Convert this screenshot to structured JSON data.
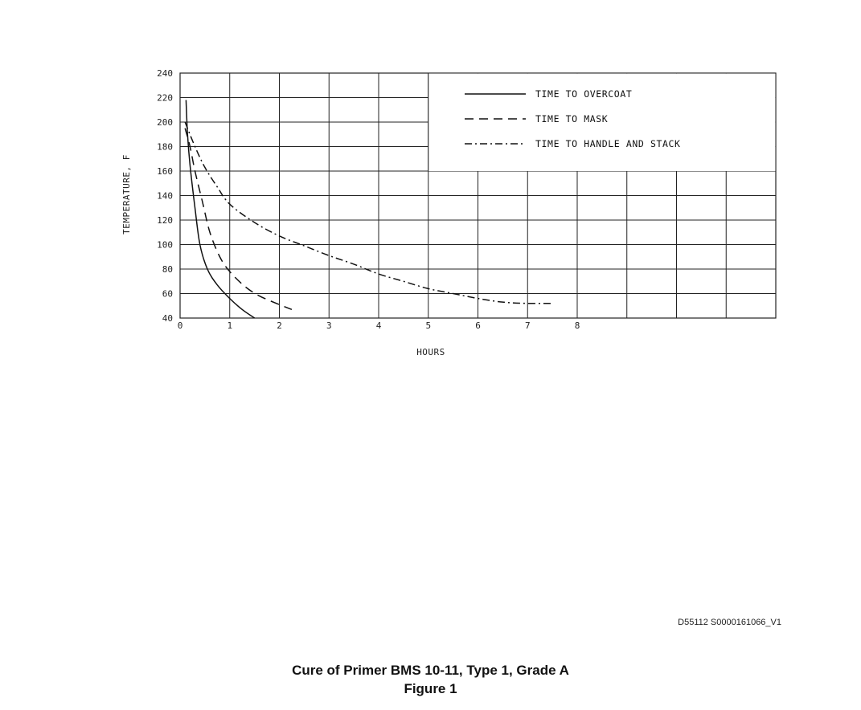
{
  "chart_data": {
    "type": "line",
    "xlabel": "HOURS",
    "ylabel": "TEMPERATURE, F",
    "xlim": [
      0,
      12
    ],
    "ylim": [
      40,
      240
    ],
    "x_ticks": [
      "0",
      "1",
      "2",
      "3",
      "4",
      "5",
      "6",
      "7",
      "8"
    ],
    "y_ticks": [
      "40",
      "60",
      "80",
      "100",
      "120",
      "140",
      "160",
      "180",
      "200",
      "220",
      "240"
    ],
    "grid": true,
    "legend_position": "top-right",
    "series": [
      {
        "name": "TIME TO OVERCOAT",
        "style": "solid",
        "points": [
          [
            0.12,
            218
          ],
          [
            0.15,
            190
          ],
          [
            0.2,
            165
          ],
          [
            0.3,
            130
          ],
          [
            0.4,
            100
          ],
          [
            0.55,
            80
          ],
          [
            0.75,
            67
          ],
          [
            1.0,
            56
          ],
          [
            1.25,
            47
          ],
          [
            1.5,
            40
          ]
        ]
      },
      {
        "name": "TIME TO MASK",
        "style": "dashed",
        "points": [
          [
            0.1,
            195
          ],
          [
            0.2,
            180
          ],
          [
            0.3,
            160
          ],
          [
            0.45,
            135
          ],
          [
            0.6,
            110
          ],
          [
            0.8,
            90
          ],
          [
            1.0,
            78
          ],
          [
            1.3,
            66
          ],
          [
            1.6,
            58
          ],
          [
            2.0,
            51
          ],
          [
            2.25,
            47
          ]
        ]
      },
      {
        "name": "TIME TO HANDLE AND STACK",
        "style": "dash-dot",
        "points": [
          [
            0.1,
            200
          ],
          [
            0.3,
            180
          ],
          [
            0.5,
            163
          ],
          [
            0.75,
            147
          ],
          [
            1.0,
            133
          ],
          [
            1.5,
            118
          ],
          [
            2.0,
            107
          ],
          [
            2.5,
            99
          ],
          [
            3.0,
            91
          ],
          [
            3.5,
            84
          ],
          [
            4.0,
            76
          ],
          [
            4.5,
            70
          ],
          [
            5.0,
            64
          ],
          [
            5.5,
            60
          ],
          [
            6.0,
            56
          ],
          [
            6.5,
            53
          ],
          [
            7.0,
            52
          ],
          [
            7.5,
            52
          ]
        ]
      }
    ]
  },
  "doc_id": "D55112 S0000161066_V1",
  "caption": {
    "title": "Cure of Primer BMS 10-11, Type 1, Grade A",
    "figure": "Figure 1"
  }
}
